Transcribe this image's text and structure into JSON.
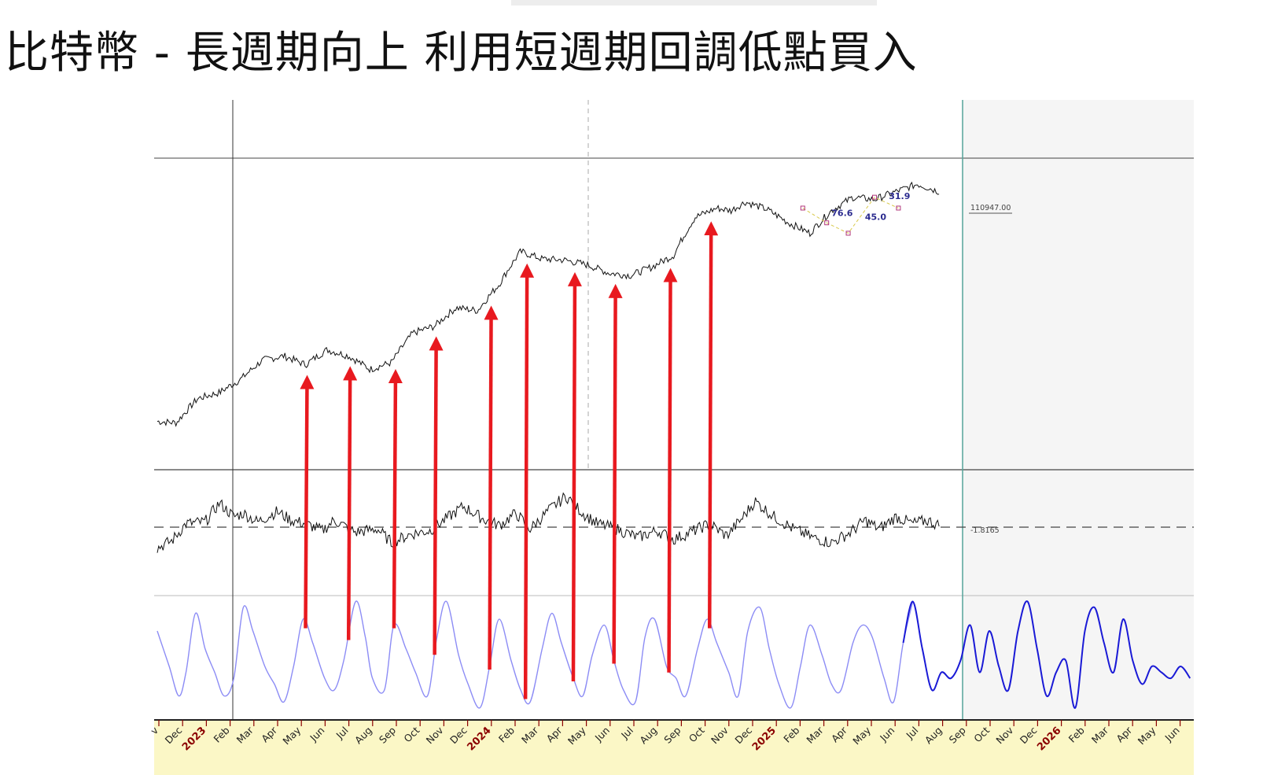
{
  "title": "比特幣 - 長週期向上 利用短週期回調低點買入",
  "chart_data": {
    "type": "line",
    "x_axis_labels": [
      {
        "label": "v",
        "year": false
      },
      {
        "label": "Dec",
        "year": false
      },
      {
        "label": "2023",
        "year": true
      },
      {
        "label": "Feb",
        "year": false
      },
      {
        "label": "Mar",
        "year": false
      },
      {
        "label": "Apr",
        "year": false
      },
      {
        "label": "May",
        "year": false
      },
      {
        "label": "Jun",
        "year": false
      },
      {
        "label": "Jul",
        "year": false
      },
      {
        "label": "Aug",
        "year": false
      },
      {
        "label": "Sep",
        "year": false
      },
      {
        "label": "Oct",
        "year": false
      },
      {
        "label": "Nov",
        "year": false
      },
      {
        "label": "Dec",
        "year": false
      },
      {
        "label": "2024",
        "year": true
      },
      {
        "label": "Feb",
        "year": false
      },
      {
        "label": "Mar",
        "year": false
      },
      {
        "label": "Apr",
        "year": false
      },
      {
        "label": "May",
        "year": false
      },
      {
        "label": "Jun",
        "year": false
      },
      {
        "label": "Jul",
        "year": false
      },
      {
        "label": "Aug",
        "year": false
      },
      {
        "label": "Sep",
        "year": false
      },
      {
        "label": "Oct",
        "year": false
      },
      {
        "label": "Nov",
        "year": false
      },
      {
        "label": "Dec",
        "year": false
      },
      {
        "label": "2025",
        "year": true
      },
      {
        "label": "Feb",
        "year": false
      },
      {
        "label": "Mar",
        "year": false
      },
      {
        "label": "Apr",
        "year": false
      },
      {
        "label": "May",
        "year": false
      },
      {
        "label": "Jun",
        "year": false
      },
      {
        "label": "Jul",
        "year": false
      },
      {
        "label": "Aug",
        "year": false
      },
      {
        "label": "Sep",
        "year": false
      },
      {
        "label": "Oct",
        "year": false
      },
      {
        "label": "Nov",
        "year": false
      },
      {
        "label": "Dec",
        "year": false
      },
      {
        "label": "2026",
        "year": true
      },
      {
        "label": "Feb",
        "year": false
      },
      {
        "label": "Mar",
        "year": false
      },
      {
        "label": "Apr",
        "year": false
      },
      {
        "label": "May",
        "year": false
      },
      {
        "label": "Jun",
        "year": false
      }
    ],
    "price_series": {
      "last_value_label": "110947.00",
      "x_month": [
        0,
        0.8,
        1.7,
        2.6,
        3.5,
        4.4,
        5.3,
        6.2,
        7.1,
        8.0,
        8.9,
        9.8,
        10.7,
        11.6,
        12.5,
        13.4,
        14.3,
        15.2,
        16.1,
        17.0,
        18.0,
        18.9,
        19.8,
        20.7,
        21.6,
        22.5,
        23.4,
        24.0,
        24.6,
        25.5,
        26.4,
        27.3,
        28.2,
        29.1,
        30.0,
        30.9,
        31.8,
        32.7
      ],
      "y": [
        17000,
        16800,
        20500,
        21500,
        24000,
        28000,
        29000,
        27000,
        30500,
        29000,
        26000,
        27500,
        35000,
        37000,
        43000,
        42000,
        52000,
        68000,
        64000,
        63500,
        61000,
        57000,
        56000,
        60000,
        66000,
        90000,
        97000,
        95000,
        102000,
        96000,
        86000,
        79000,
        95000,
        106000,
        104000,
        111000,
        118000,
        110947
      ]
    },
    "fib_labels": [
      "76.6",
      "45.0",
      "31.9"
    ],
    "oscillator_series": {
      "zero_value_label": "-1.8165",
      "x_month": [
        0,
        0.6,
        1.2,
        2.0,
        2.6,
        3.2,
        3.6,
        4.2,
        5.0,
        5.6,
        6.2,
        6.9,
        7.4,
        8.3,
        9.2,
        9.8,
        10.6,
        11.4,
        12.2,
        12.8,
        13.6,
        14.3,
        15.0,
        15.6,
        16.4,
        17.1,
        17.8,
        18.4,
        19.2,
        20.1,
        20.9,
        21.6,
        22.3,
        23.1,
        23.8,
        24.4,
        25.0,
        25.8,
        26.6,
        27.4,
        28.2,
        29.0,
        29.6,
        30.2,
        30.9,
        31.6,
        32.2,
        32.7
      ],
      "y": [
        -1.2,
        -0.8,
        0.2,
        0.3,
        1.4,
        0.6,
        0.8,
        0.3,
        0.9,
        0.4,
        0.2,
        -0.2,
        0.4,
        -0.3,
        -0.1,
        -0.9,
        -0.4,
        -0.2,
        0.6,
        1.2,
        0.5,
        0.1,
        0.8,
        -0.1,
        1.0,
        1.8,
        0.8,
        0.2,
        -0.1,
        -0.6,
        -0.2,
        -0.7,
        -0.3,
        0.2,
        -0.5,
        0.4,
        1.5,
        0.6,
        -0.1,
        -0.6,
        -0.9,
        -0.3,
        0.4,
        -0.1,
        0.6,
        0.2,
        0.4,
        0.1
      ]
    },
    "cycle_series": {
      "ylim": [
        -1,
        1
      ],
      "historical_color": "#8c8cf5",
      "projection_color": "#1a1ad6",
      "projection_start_month": 31.6,
      "x_month": [
        0,
        0.5,
        0.9,
        1.2,
        1.6,
        2.0,
        2.4,
        2.8,
        3.2,
        3.6,
        4.0,
        4.5,
        4.9,
        5.3,
        5.7,
        6.1,
        6.5,
        7.0,
        7.4,
        7.8,
        8.3,
        8.7,
        9.0,
        9.5,
        9.9,
        10.4,
        10.8,
        11.3,
        11.7,
        12.1,
        12.6,
        13.0,
        13.5,
        13.9,
        14.3,
        14.8,
        15.2,
        15.6,
        16.1,
        16.5,
        16.9,
        17.4,
        17.8,
        18.2,
        18.7,
        19.1,
        19.5,
        20.0,
        20.4,
        20.8,
        21.3,
        21.7,
        22.1,
        22.6,
        23.0,
        23.4,
        23.9,
        24.3,
        24.7,
        25.2,
        25.6,
        26.0,
        26.5,
        26.9,
        27.3,
        27.8,
        28.2,
        28.6,
        29.1,
        29.5,
        29.9,
        30.4,
        30.8,
        31.2,
        31.6,
        32.0,
        32.4,
        32.8,
        33.2,
        33.6,
        34.0,
        34.4,
        34.8,
        35.2,
        35.6,
        36.0,
        36.4,
        36.8,
        37.2,
        37.6,
        38.0,
        38.4,
        38.8,
        39.2,
        39.6,
        40.0,
        40.4,
        40.8,
        41.2,
        41.6,
        42.0,
        42.4,
        42.8,
        43.2
      ],
      "y": [
        0.4,
        -0.2,
        -0.7,
        -0.3,
        0.7,
        0.1,
        -0.3,
        -0.7,
        -0.4,
        0.8,
        0.4,
        -0.2,
        -0.5,
        -0.8,
        -0.2,
        0.6,
        0.2,
        -0.4,
        -0.6,
        -0.1,
        0.9,
        0.3,
        -0.4,
        -0.6,
        0.5,
        0.1,
        -0.3,
        -0.7,
        0.3,
        0.9,
        0.0,
        -0.5,
        -0.9,
        -0.2,
        0.6,
        -0.1,
        -0.6,
        -0.8,
        0.1,
        0.7,
        0.2,
        -0.4,
        -0.7,
        0.0,
        0.5,
        -0.1,
        -0.6,
        -0.8,
        0.3,
        0.6,
        -0.2,
        -0.4,
        -0.7,
        0.1,
        0.6,
        0.2,
        -0.3,
        -0.7,
        0.4,
        0.8,
        0.1,
        -0.5,
        -0.9,
        -0.2,
        0.5,
        0.0,
        -0.5,
        -0.6,
        0.2,
        0.5,
        0.3,
        -0.4,
        -0.8,
        0.2,
        0.9,
        0.1,
        -0.6,
        -0.3,
        -0.4,
        -0.1,
        0.5,
        -0.3,
        0.4,
        -0.2,
        -0.6,
        0.4,
        0.9,
        0.1,
        -0.7,
        -0.3,
        -0.1,
        -0.9,
        0.4,
        0.8,
        0.2,
        -0.3,
        0.6,
        -0.1,
        -0.5,
        -0.2,
        -0.3,
        -0.4,
        -0.2,
        -0.4
      ]
    },
    "arrows_x_month": [
      6.2,
      8.0,
      9.9,
      11.6,
      13.9,
      15.4,
      17.4,
      19.1,
      21.4,
      23.1
    ]
  }
}
